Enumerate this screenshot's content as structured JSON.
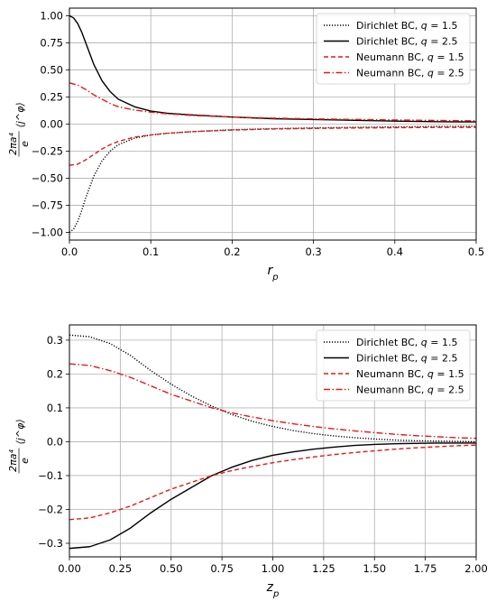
{
  "chart_data": [
    {
      "type": "line",
      "xlabel": "r_p",
      "ylabel": "2πa⁴/e ⟨j^φ⟩",
      "xlim": [
        0,
        0.5
      ],
      "ylim": [
        -1.07,
        1.07
      ],
      "xticks": [
        "0.0",
        "0.1",
        "0.2",
        "0.3",
        "0.4",
        "0.5"
      ],
      "yticks": [
        "-1.00",
        "-0.75",
        "-0.50",
        "-0.25",
        "0.00",
        "0.25",
        "0.50",
        "0.75",
        "1.00"
      ],
      "grid": true,
      "legend_position": "top-right",
      "series": [
        {
          "name": "Dirichlet BC, q = 1.5",
          "color": "#000000",
          "dash": "dotted",
          "x": [
            0,
            0.005,
            0.01,
            0.015,
            0.02,
            0.03,
            0.04,
            0.05,
            0.06,
            0.08,
            0.1,
            0.12,
            0.15,
            0.2,
            0.25,
            0.3,
            0.35,
            0.4,
            0.45,
            0.5
          ],
          "y": [
            -1.0,
            -0.97,
            -0.9,
            -0.8,
            -0.68,
            -0.48,
            -0.34,
            -0.25,
            -0.19,
            -0.13,
            -0.1,
            -0.085,
            -0.07,
            -0.052,
            -0.042,
            -0.035,
            -0.03,
            -0.026,
            -0.022,
            -0.02
          ]
        },
        {
          "name": "Dirichlet BC, q = 2.5",
          "color": "#000000",
          "dash": "solid",
          "x": [
            0,
            0.005,
            0.01,
            0.015,
            0.02,
            0.03,
            0.04,
            0.05,
            0.06,
            0.08,
            0.1,
            0.12,
            0.15,
            0.2,
            0.25,
            0.3,
            0.35,
            0.4,
            0.45,
            0.5
          ],
          "y": [
            1.0,
            0.98,
            0.93,
            0.85,
            0.75,
            0.55,
            0.4,
            0.3,
            0.23,
            0.16,
            0.12,
            0.1,
            0.085,
            0.065,
            0.05,
            0.042,
            0.035,
            0.028,
            0.022,
            0.02
          ]
        },
        {
          "name": "Neumann BC, q = 1.5",
          "color": "#e41a1c",
          "dash": "dashed",
          "x": [
            0,
            0.01,
            0.02,
            0.03,
            0.04,
            0.05,
            0.06,
            0.08,
            0.1,
            0.12,
            0.15,
            0.2,
            0.25,
            0.3,
            0.35,
            0.4,
            0.45,
            0.5
          ],
          "y": [
            -0.38,
            -0.37,
            -0.33,
            -0.28,
            -0.23,
            -0.19,
            -0.16,
            -0.12,
            -0.1,
            -0.085,
            -0.07,
            -0.055,
            -0.045,
            -0.04,
            -0.036,
            -0.033,
            -0.031,
            -0.03
          ]
        },
        {
          "name": "Neumann BC, q = 2.5",
          "color": "#e41a1c",
          "dash": "dashdot",
          "x": [
            0,
            0.01,
            0.02,
            0.03,
            0.04,
            0.05,
            0.06,
            0.08,
            0.1,
            0.12,
            0.15,
            0.2,
            0.25,
            0.3,
            0.35,
            0.4,
            0.45,
            0.5
          ],
          "y": [
            0.38,
            0.36,
            0.32,
            0.27,
            0.23,
            0.19,
            0.16,
            0.13,
            0.11,
            0.095,
            0.08,
            0.065,
            0.055,
            0.048,
            0.043,
            0.038,
            0.034,
            0.03
          ]
        }
      ]
    },
    {
      "type": "line",
      "xlabel": "z_p",
      "ylabel": "2πa⁴/e ⟨j^φ⟩",
      "xlim": [
        0,
        2.0
      ],
      "ylim": [
        -0.34,
        0.345
      ],
      "xticks": [
        "0.00",
        "0.25",
        "0.50",
        "0.75",
        "1.00",
        "1.25",
        "1.50",
        "1.75",
        "2.00"
      ],
      "yticks": [
        "-0.3",
        "-0.2",
        "-0.1",
        "0.0",
        "0.1",
        "0.2",
        "0.3"
      ],
      "grid": true,
      "legend_position": "top-right",
      "series": [
        {
          "name": "Dirichlet BC, q = 1.5",
          "color": "#000000",
          "dash": "dotted",
          "x": [
            0,
            0.1,
            0.2,
            0.3,
            0.4,
            0.5,
            0.6,
            0.7,
            0.8,
            0.9,
            1.0,
            1.1,
            1.2,
            1.3,
            1.4,
            1.5,
            1.6,
            1.7,
            1.8,
            1.9,
            2.0
          ],
          "y": [
            0.315,
            0.31,
            0.29,
            0.255,
            0.21,
            0.17,
            0.135,
            0.105,
            0.08,
            0.06,
            0.045,
            0.033,
            0.024,
            0.017,
            0.012,
            0.008,
            0.005,
            0.003,
            0.002,
            0.001,
            0.0
          ]
        },
        {
          "name": "Dirichlet BC, q = 2.5",
          "color": "#000000",
          "dash": "solid",
          "x": [
            0,
            0.1,
            0.2,
            0.3,
            0.4,
            0.5,
            0.6,
            0.7,
            0.8,
            0.9,
            1.0,
            1.1,
            1.2,
            1.3,
            1.4,
            1.5,
            1.6,
            1.7,
            1.8,
            1.9,
            2.0
          ],
          "y": [
            -0.315,
            -0.31,
            -0.29,
            -0.255,
            -0.21,
            -0.17,
            -0.135,
            -0.1,
            -0.075,
            -0.055,
            -0.04,
            -0.03,
            -0.022,
            -0.016,
            -0.011,
            -0.008,
            -0.006,
            -0.005,
            -0.004,
            -0.004,
            -0.004
          ]
        },
        {
          "name": "Neumann BC, q = 1.5",
          "color": "#e41a1c",
          "dash": "dashed",
          "x": [
            0,
            0.1,
            0.2,
            0.3,
            0.4,
            0.5,
            0.6,
            0.7,
            0.8,
            0.9,
            1.0,
            1.1,
            1.2,
            1.3,
            1.4,
            1.5,
            1.6,
            1.7,
            1.8,
            1.9,
            2.0
          ],
          "y": [
            -0.23,
            -0.225,
            -0.21,
            -0.19,
            -0.165,
            -0.14,
            -0.12,
            -0.1,
            -0.085,
            -0.073,
            -0.062,
            -0.053,
            -0.045,
            -0.038,
            -0.032,
            -0.027,
            -0.022,
            -0.018,
            -0.015,
            -0.012,
            -0.01
          ]
        },
        {
          "name": "Neumann BC, q = 2.5",
          "color": "#e41a1c",
          "dash": "dashdot",
          "x": [
            0,
            0.1,
            0.2,
            0.3,
            0.4,
            0.5,
            0.6,
            0.7,
            0.8,
            0.9,
            1.0,
            1.1,
            1.2,
            1.3,
            1.4,
            1.5,
            1.6,
            1.7,
            1.8,
            1.9,
            2.0
          ],
          "y": [
            0.23,
            0.225,
            0.21,
            0.19,
            0.165,
            0.14,
            0.12,
            0.1,
            0.085,
            0.073,
            0.062,
            0.053,
            0.045,
            0.038,
            0.032,
            0.027,
            0.022,
            0.018,
            0.015,
            0.012,
            0.01
          ]
        }
      ]
    }
  ]
}
